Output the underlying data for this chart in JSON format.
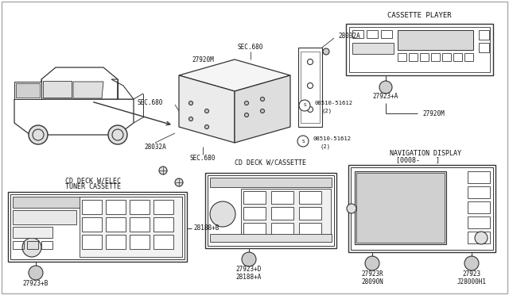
{
  "bg_color": "#ffffff",
  "line_color": "#333333",
  "text_color": "#111111",
  "fig_width": 6.4,
  "fig_height": 3.72,
  "dpi": 100,
  "labels": {
    "cassette_player": "CASSETTE PLAYER",
    "cd_deck_cassette": "CD DECK W/CASSETTE",
    "navigation_display": "NAVIGATION DISPLAY",
    "navigation_sub": "[0008-    ]",
    "cd_deck_elec_1": "CD DECK W/ELEC",
    "cd_deck_elec_2": "TUNER CASSETTE",
    "sec680_a": "SEC.680",
    "sec680_b": "SEC.680",
    "sec680_c": "SEC.680",
    "part_27920M_a": "27920M",
    "part_27920M_b": "27920M",
    "part_28032A_a": "28032A",
    "part_28032A_b": "28032A",
    "part_27923A": "27923+A",
    "part_27923B": "27923+B",
    "part_27923D": "27923+D",
    "part_27923R": "27923R",
    "part_27923": "27923",
    "part_28188B": "28188+B",
    "part_28188A": "28188+A",
    "part_28090N": "28090N",
    "part_J28000H1": "J28000H1",
    "part_08510_a": "08510-51612",
    "part_08510_b": "(2)",
    "part_08510_c": "08510-51612",
    "part_08510_d": "(2)"
  }
}
